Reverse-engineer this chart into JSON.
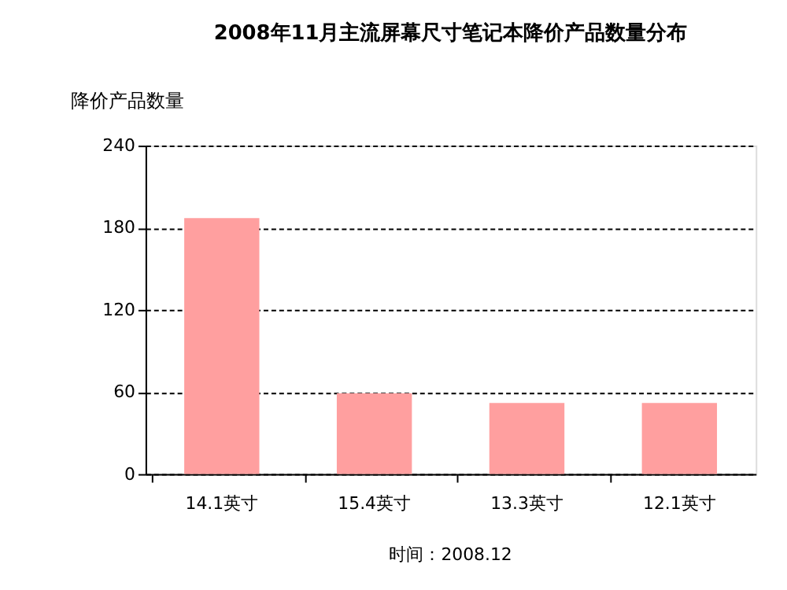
{
  "chart_data": {
    "type": "bar",
    "title": "2008年11月主流屏幕尺寸笔记本降价产品数量分布",
    "ylabel": "降价产品数量",
    "categories": [
      "14.1英寸",
      "15.4英寸",
      "13.3英寸",
      "12.1英寸"
    ],
    "values": [
      187,
      59,
      52,
      52
    ],
    "color": "#ff9f9f",
    "ylim": [
      0,
      240
    ],
    "yticks": [
      0,
      60,
      120,
      180,
      240
    ],
    "grid": "y",
    "annotations": [
      "时间：2008.12"
    ]
  }
}
